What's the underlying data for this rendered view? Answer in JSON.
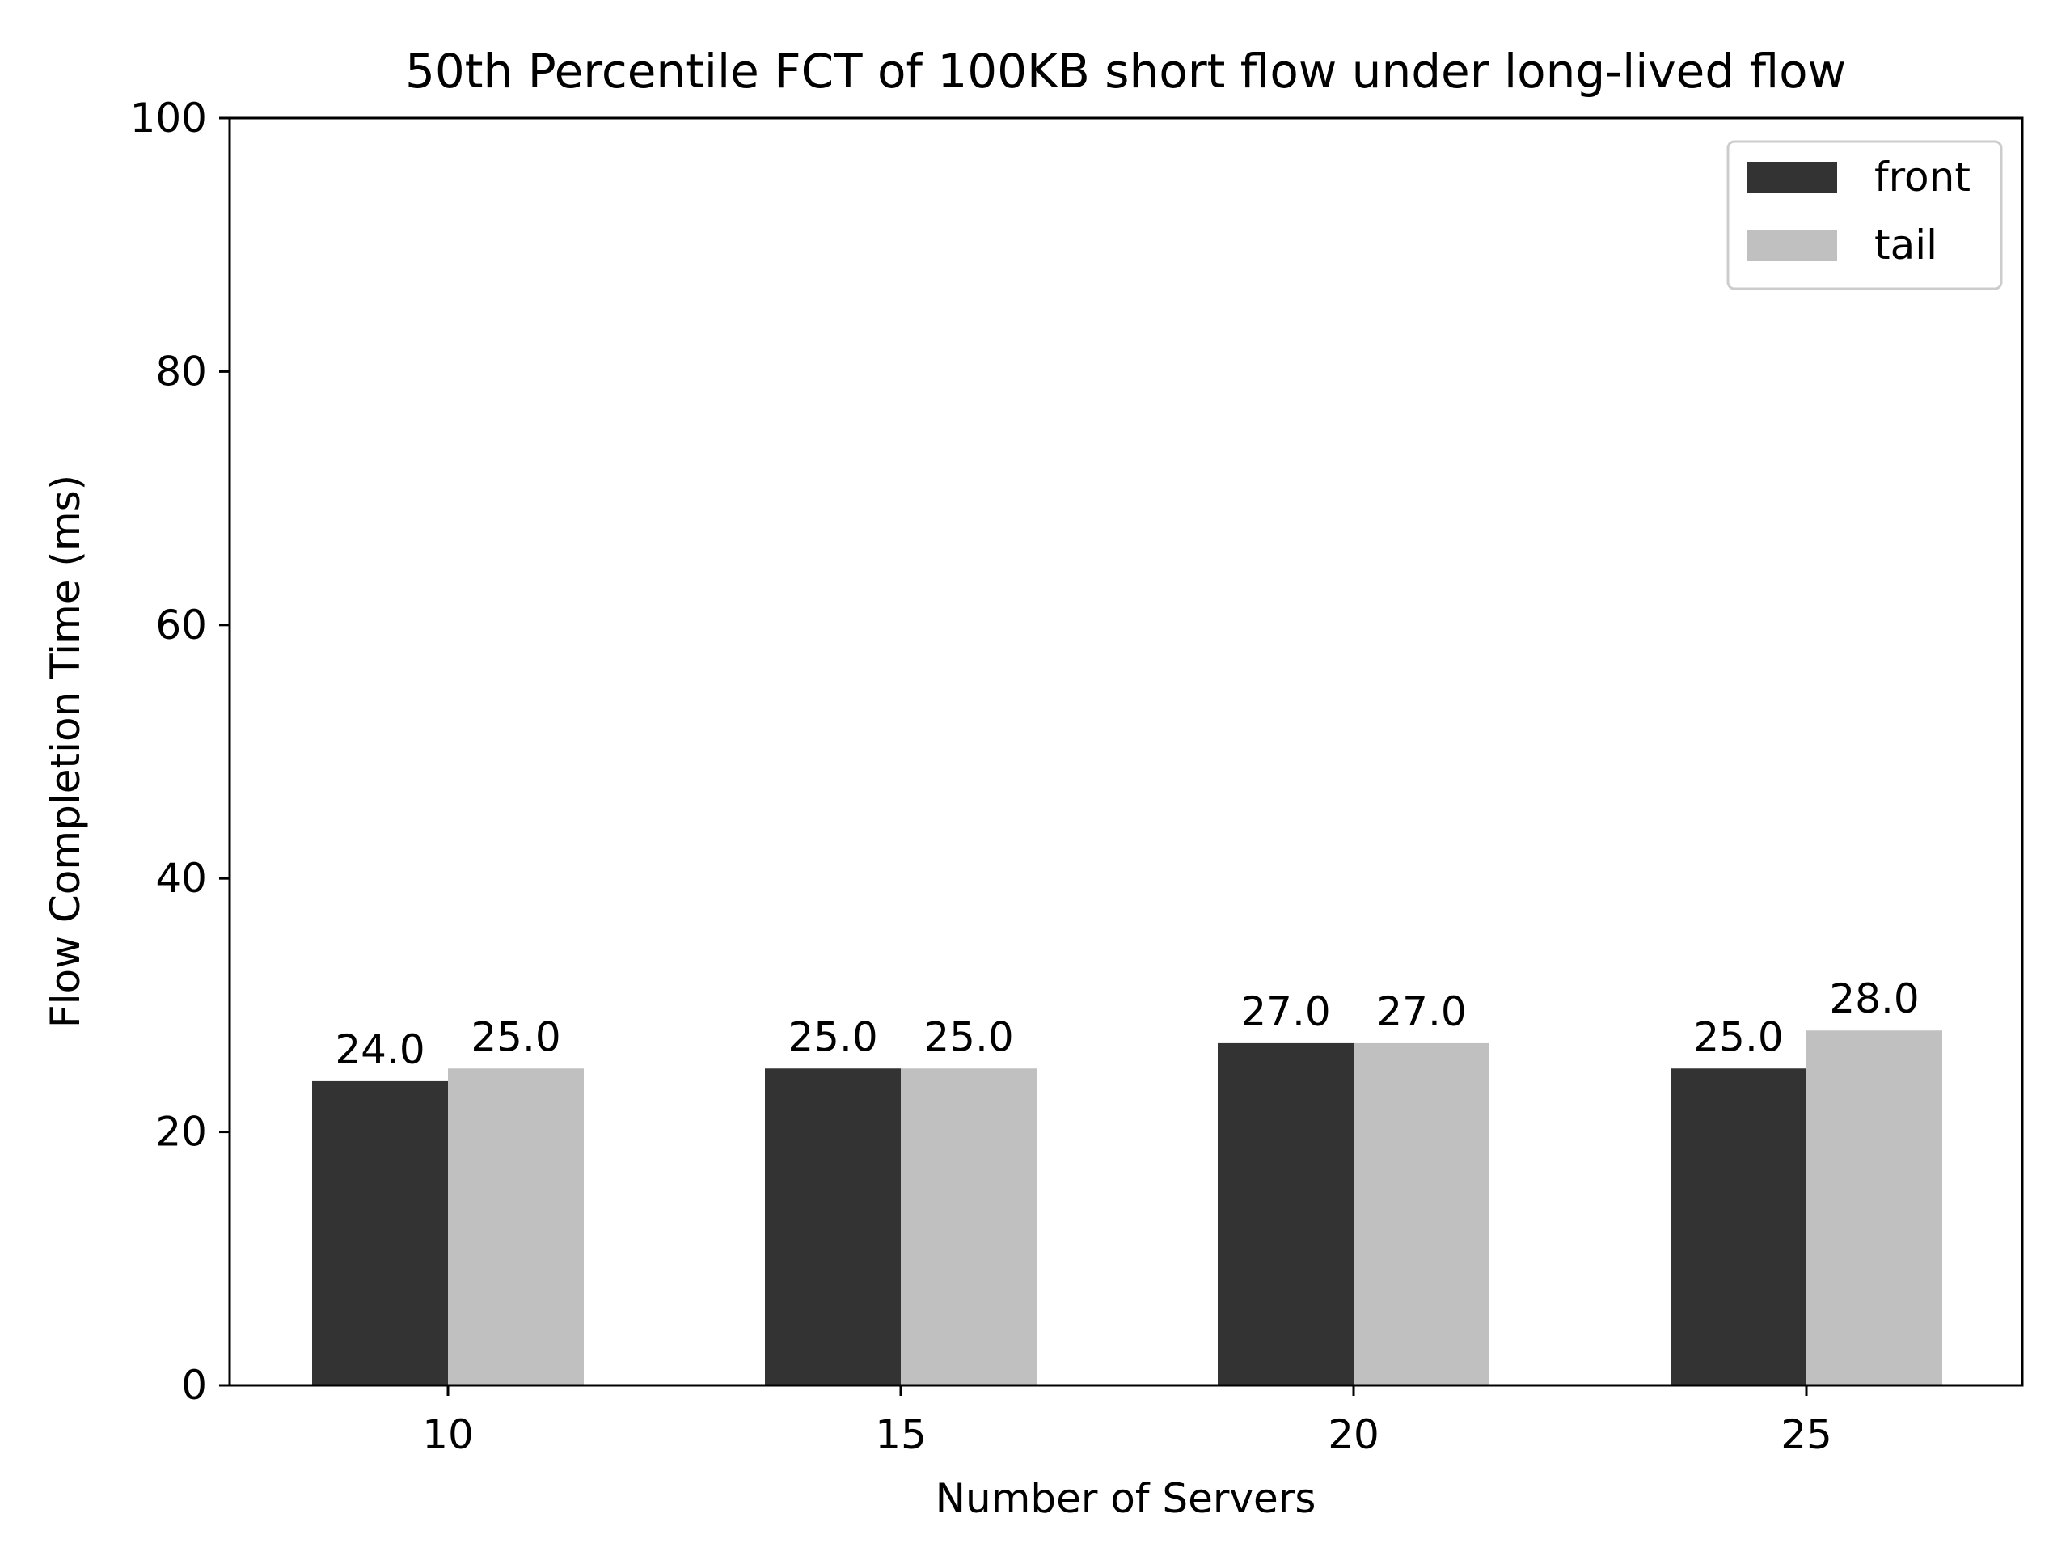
{
  "chart_data": {
    "type": "bar",
    "title": "50th Percentile FCT of 100KB short flow under long-lived flow",
    "xlabel": "Number of Servers",
    "ylabel": "Flow Completion Time (ms)",
    "categories": [
      "10",
      "15",
      "20",
      "25"
    ],
    "series": [
      {
        "name": "front",
        "values": [
          24.0,
          25.0,
          27.0,
          25.0
        ],
        "color": "#333333"
      },
      {
        "name": "tail",
        "values": [
          25.0,
          25.0,
          27.0,
          28.0
        ],
        "color": "#c0c0c0"
      }
    ],
    "data_labels": {
      "front": [
        "24.0",
        "25.0",
        "27.0",
        "25.0"
      ],
      "tail": [
        "25.0",
        "25.0",
        "27.0",
        "28.0"
      ]
    },
    "ylim": [
      0,
      100
    ],
    "yticks": [
      "0",
      "20",
      "40",
      "60",
      "80",
      "100"
    ],
    "grid": false,
    "legend_position": "top-right"
  }
}
